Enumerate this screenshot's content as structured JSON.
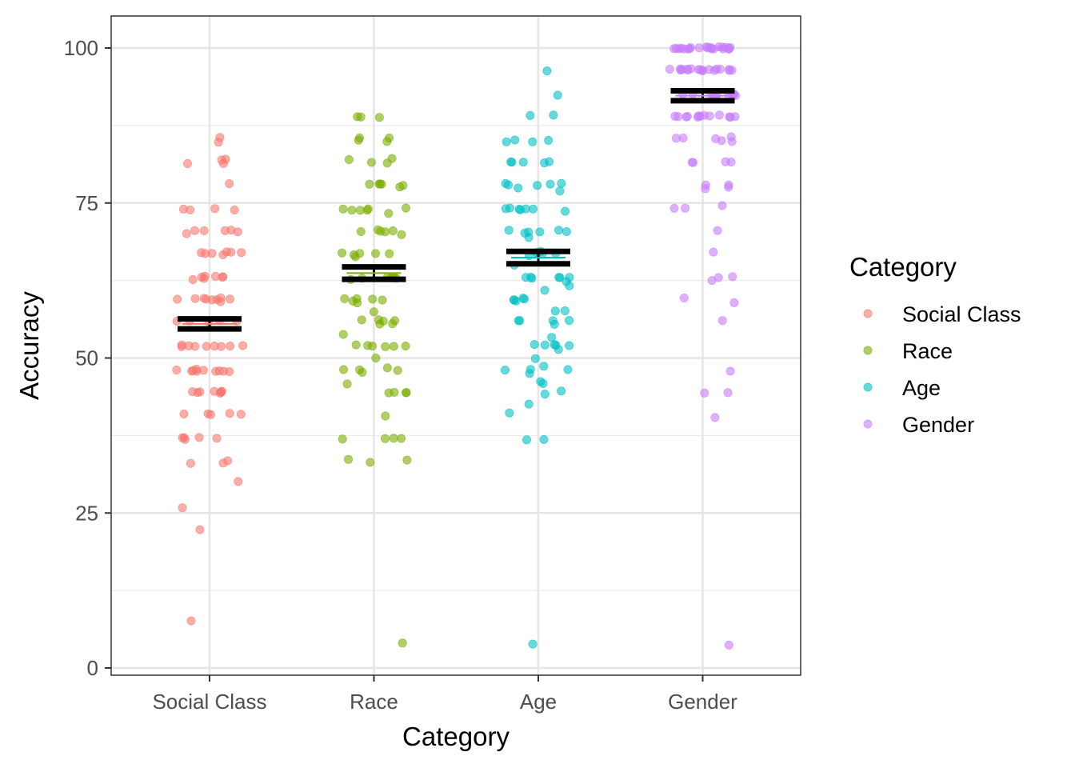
{
  "chart_data": {
    "type": "scatter",
    "subtype": "jitter-strip-with-mean-se",
    "xlabel": "Category",
    "ylabel": "Accuracy",
    "ylim": [
      0,
      102
    ],
    "y_ticks": [
      0,
      25,
      50,
      75,
      100
    ],
    "grid": true,
    "legend": {
      "title": "Category",
      "position": "right",
      "entries": [
        "Social Class",
        "Race",
        "Age",
        "Gender"
      ]
    },
    "categories": [
      "Social Class",
      "Race",
      "Age",
      "Gender"
    ],
    "series": [
      {
        "name": "Social Class",
        "color": "#F8766D",
        "mean": 55.5,
        "se": 0.8,
        "values": [
          85.5,
          85,
          82,
          81.5,
          81.5,
          82,
          78,
          74,
          74,
          74,
          74,
          70.5,
          70.5,
          70.5,
          70.5,
          70.5,
          70,
          67,
          67,
          67,
          67,
          67,
          67,
          66.5,
          63,
          63,
          63,
          63,
          63,
          63,
          62.5,
          59.5,
          59.5,
          59.5,
          59.5,
          59.5,
          59.5,
          59.5,
          59.5,
          59,
          56,
          56,
          56,
          56,
          56,
          52,
          52,
          52,
          52,
          52,
          52,
          52,
          52,
          52,
          48,
          48,
          48,
          48,
          48,
          48,
          48,
          48,
          48,
          48,
          44.5,
          44.5,
          44.5,
          44.5,
          44.5,
          44.5,
          44.5,
          44.5,
          41,
          41,
          41,
          41,
          41,
          37,
          37,
          37,
          37,
          37,
          33.5,
          33,
          33,
          30,
          26,
          22.5,
          7.5
        ]
      },
      {
        "name": "Race",
        "color": "#7CAE00",
        "mean": 63.7,
        "se": 1.0,
        "values": [
          89,
          89,
          89,
          85.5,
          85.5,
          85,
          85,
          82,
          82,
          81.5,
          81.5,
          78,
          78,
          78,
          78,
          78,
          77.5,
          74,
          74,
          74,
          74,
          74,
          74,
          73.5,
          70.5,
          70.5,
          70.5,
          70.5,
          70.5,
          70,
          67,
          67,
          67,
          67,
          66.5,
          66.5,
          63,
          63,
          63,
          63,
          63,
          63,
          62.5,
          59.5,
          59.5,
          59.5,
          59.5,
          59,
          59,
          57.5,
          56,
          56,
          56,
          56,
          55.5,
          55.5,
          54,
          52,
          52,
          52,
          52,
          52,
          52,
          50,
          48.5,
          48,
          48,
          48,
          47.5,
          46,
          44.5,
          44.5,
          44.5,
          44.5,
          40.5,
          37,
          37,
          37,
          37,
          33.5,
          33.5,
          33,
          4
        ]
      },
      {
        "name": "Age",
        "color": "#00BFC4",
        "mean": 66.2,
        "se": 1.0,
        "values": [
          96.5,
          92.5,
          89,
          89,
          85,
          85,
          85,
          85,
          81.5,
          81.5,
          81.5,
          81.5,
          81.5,
          78,
          78,
          78,
          78,
          78,
          77.5,
          77,
          74,
          74,
          74,
          74,
          74,
          74,
          73.5,
          70.5,
          70.5,
          70.5,
          70.5,
          70.5,
          70,
          69.5,
          67,
          67,
          67,
          67,
          67,
          66.5,
          65,
          63,
          63,
          63,
          63,
          63,
          63,
          62.5,
          61.5,
          61,
          59.5,
          59.5,
          59.5,
          59.5,
          59,
          57.5,
          57.5,
          56,
          56,
          56,
          56,
          55.5,
          53.5,
          52,
          52,
          52,
          52,
          52,
          51.5,
          50,
          48.5,
          48,
          48,
          48,
          47.5,
          46,
          46,
          44.5,
          44,
          42.5,
          41,
          37,
          37,
          4
        ]
      },
      {
        "name": "Gender",
        "color": "#C77CFF",
        "mean": 92.3,
        "se": 0.8,
        "values": [
          100,
          100,
          100,
          100,
          100,
          100,
          100,
          100,
          100,
          100,
          100,
          100,
          100,
          100,
          100,
          100,
          100,
          100,
          100,
          100,
          100,
          100,
          96.5,
          96.5,
          96.5,
          96.5,
          96.5,
          96.5,
          96.5,
          96.5,
          96.5,
          96.5,
          96.5,
          96.5,
          96.5,
          96.5,
          96.5,
          96.5,
          96.5,
          96.5,
          92.5,
          92.5,
          92.5,
          92.5,
          92.5,
          92.5,
          92.5,
          92.5,
          92.5,
          92.5,
          92.5,
          89,
          89,
          89,
          89,
          89,
          89,
          89,
          89,
          89,
          89,
          89,
          89,
          89,
          85.5,
          85.5,
          85.5,
          85.5,
          85,
          85,
          81.5,
          81.5,
          81.5,
          81.5,
          78,
          78,
          77.5,
          77.5,
          74,
          74,
          74.5,
          70.5,
          67,
          63,
          63,
          62.5,
          59.5,
          59,
          56,
          48,
          44.5,
          44.5,
          40.5,
          3.5
        ]
      }
    ]
  }
}
